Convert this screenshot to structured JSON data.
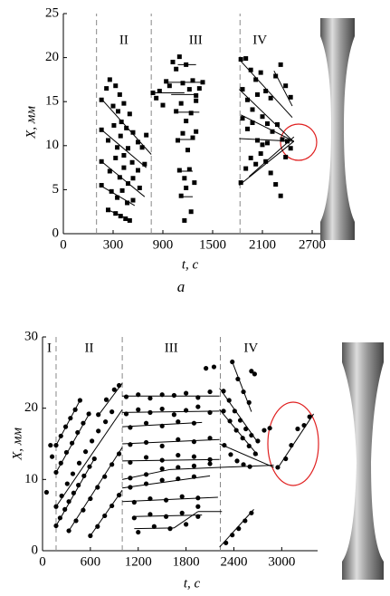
{
  "chart_data": [
    {
      "type": "scatter",
      "xlabel": "t, с",
      "ylabel": "X, мм",
      "caption": "a",
      "xlim": [
        0,
        2800
      ],
      "ylim": [
        0,
        25
      ],
      "xticks": [
        0,
        300,
        900,
        1500,
        2100,
        2700
      ],
      "yticks": [
        0,
        5,
        10,
        15,
        20,
        25
      ],
      "phases": [
        "II",
        "III",
        "IV"
      ],
      "phase_boundaries": [
        200,
        760,
        1830
      ],
      "color": "#000000",
      "annotation_color": "#e02020",
      "points": {
        "x": [
          230,
          260,
          280,
          300,
          330,
          360,
          380,
          400,
          430,
          460,
          500,
          540,
          600,
          650,
          700,
          230,
          270,
          310,
          350,
          390,
          430,
          480,
          530,
          600,
          680,
          230,
          280,
          330,
          380,
          430,
          480,
          540,
          620,
          230,
          290,
          350,
          410,
          470,
          540,
          270,
          330,
          390,
          450,
          500,
          780,
          820,
          860,
          900,
          940,
          980,
          1020,
          1060,
          1100,
          1140,
          1180,
          1220,
          1260,
          1300,
          1340,
          1380,
          1060,
          1120,
          1180,
          1240,
          1300,
          1080,
          1140,
          1200,
          1260,
          1100,
          1160,
          1220,
          1280,
          1120,
          1180,
          1240,
          1160,
          1300,
          1840,
          1900,
          1960,
          2020,
          2080,
          2140,
          2200,
          2260,
          2320,
          2380,
          2440,
          1860,
          1920,
          1980,
          2040,
          2100,
          2160,
          2220,
          2280,
          2340,
          1860,
          1920,
          1980,
          2040,
          2100,
          2160,
          2400,
          1840,
          1900,
          1960,
          2020,
          2080,
          2140,
          2200,
          2260,
          2320,
          2380,
          2440
        ],
        "y": [
          15.2,
          16.5,
          17.5,
          14.5,
          16.8,
          13.9,
          15.8,
          12.7,
          14.8,
          12,
          13.6,
          11.5,
          10.4,
          9.8,
          11.2,
          11.8,
          10.6,
          12.3,
          9.8,
          11.1,
          8.9,
          9.7,
          8.1,
          7.2,
          7.9,
          8.2,
          7.1,
          8.6,
          6.4,
          7.5,
          5.7,
          6.3,
          5.2,
          5.5,
          4.8,
          4.1,
          4.9,
          3.5,
          3.8,
          2.7,
          2.3,
          2.0,
          1.7,
          1.5,
          16,
          15.4,
          16.2,
          14.6,
          17.3,
          16.8,
          19.5,
          18.7,
          20.1,
          17.1,
          19.2,
          16.4,
          17.4,
          15.7,
          16.5,
          17.2,
          13.9,
          14.8,
          12.8,
          13.7,
          15.1,
          10.6,
          11.4,
          9.5,
          10.9,
          7.2,
          6.3,
          7.3,
          5.8,
          4.3,
          5.2,
          2.5,
          1.5,
          11.6,
          19.8,
          19.9,
          18.6,
          17.5,
          18.3,
          16.2,
          15.4,
          17.9,
          19.2,
          16.8,
          15.5,
          16.4,
          15.2,
          14.1,
          15.8,
          13.3,
          12.5,
          11.6,
          12.4,
          10.7,
          13.1,
          11.9,
          12.6,
          10.6,
          10.1,
          10.3,
          10.5,
          5.8,
          7.4,
          8.6,
          7.9,
          9.1,
          8.2,
          6.9,
          5.6,
          4.3,
          8.7,
          9.7
        ]
      },
      "lines": [
        [
          230,
          15.3,
          760,
          9
        ],
        [
          230,
          11.8,
          700,
          7.5
        ],
        [
          230,
          8.2,
          680,
          4.2
        ],
        [
          230,
          5.4,
          560,
          3.2
        ],
        [
          270,
          2.7,
          500,
          1.6
        ],
        [
          760,
          16,
          1160,
          16
        ],
        [
          960,
          17.2,
          1380,
          17.2
        ],
        [
          1080,
          19.2,
          1300,
          19.2
        ],
        [
          1000,
          15.8,
          1320,
          15.8
        ],
        [
          1040,
          13.8,
          1340,
          13.8
        ],
        [
          1080,
          10.7,
          1260,
          10.7
        ],
        [
          1100,
          7.1,
          1260,
          7.1
        ],
        [
          1100,
          4.2,
          1260,
          4.2
        ],
        [
          1820,
          19.8,
          2460,
          13.2
        ],
        [
          1820,
          16.4,
          2470,
          10.5
        ],
        [
          1840,
          13.5,
          2480,
          10.5
        ],
        [
          1820,
          10.8,
          2480,
          10.5
        ],
        [
          1820,
          5.5,
          2480,
          10.5
        ],
        [
          1940,
          6.5,
          2480,
          11
        ],
        [
          2240,
          18.5,
          2460,
          14.5
        ]
      ]
    },
    {
      "type": "scatter",
      "xlabel": "t, с",
      "ylabel": "X, мм",
      "xlim": [
        0,
        3450
      ],
      "ylim": [
        0,
        30
      ],
      "xticks": [
        0,
        600,
        1200,
        1800,
        2400,
        3000
      ],
      "yticks": [
        0,
        10,
        20,
        30
      ],
      "phases": [
        "I",
        "II",
        "III",
        "IV"
      ],
      "phase_boundaries": [
        170,
        1000,
        2230
      ],
      "color": "#000000",
      "annotation_color": "#e02020",
      "points": {
        "x": [
          50,
          100,
          120,
          170,
          220,
          280,
          330,
          390,
          450,
          520,
          590,
          650,
          170,
          240,
          310,
          380,
          460,
          540,
          620,
          700,
          790,
          870,
          170,
          230,
          300,
          370,
          440,
          510,
          580,
          170,
          230,
          290,
          350,
          410,
          470,
          330,
          420,
          510,
          600,
          690,
          780,
          870,
          960,
          600,
          690,
          780,
          870,
          960,
          700,
          800,
          900,
          960,
          1050,
          1200,
          1350,
          1500,
          1650,
          1800,
          1950,
          2100,
          1050,
          1200,
          1350,
          1500,
          1650,
          1800,
          1950,
          2100,
          1100,
          1300,
          1500,
          1700,
          1900,
          1100,
          1300,
          1500,
          1700,
          1900,
          2100,
          1100,
          1300,
          1500,
          1700,
          1900,
          2100,
          1100,
          1300,
          1500,
          1700,
          1900,
          2100,
          1100,
          1300,
          1500,
          1700,
          1900,
          1150,
          1350,
          1550,
          1750,
          1950,
          1150,
          1350,
          1550,
          1750,
          1950,
          1200,
          1400,
          1600,
          1800,
          1950,
          2050,
          2150,
          2270,
          2340,
          2410,
          2480,
          2550,
          2620,
          2700,
          2270,
          2350,
          2430,
          2510,
          2590,
          2670,
          2380,
          2450,
          2520,
          2590,
          2660,
          2620,
          2280,
          2360,
          2440,
          2520,
          2600,
          2300,
          2380,
          2460,
          2540,
          2620,
          2780,
          2850,
          2950,
          3050,
          3120,
          3200,
          3280,
          3350
        ],
        "y": [
          8.2,
          14.8,
          13.2,
          3.5,
          4.6,
          5.8,
          6.9,
          8.1,
          9.2,
          10.5,
          11.8,
          12.9,
          6.2,
          7.7,
          9.4,
          10.8,
          12.3,
          13.9,
          15.4,
          16.8,
          18.1,
          19.5,
          11,
          12.3,
          13.8,
          15.1,
          16.6,
          17.9,
          19.2,
          14.8,
          16.1,
          17.4,
          18.6,
          19.8,
          21.1,
          2.8,
          4.2,
          5.7,
          7.3,
          8.9,
          10.4,
          12.1,
          13.6,
          2.1,
          3.4,
          4.9,
          6.3,
          7.8,
          19.1,
          21.2,
          22.6,
          23.2,
          21.6,
          21.9,
          21.4,
          21.9,
          21.8,
          22.1,
          21.5,
          22.3,
          19.2,
          19.8,
          19.4,
          19.9,
          19.1,
          19.7,
          20.2,
          19.4,
          17.3,
          17.9,
          17.5,
          18.1,
          17.9,
          14.9,
          15.2,
          14.7,
          15.6,
          15.3,
          15.8,
          12.4,
          13.1,
          12.7,
          13.4,
          13.2,
          12.8,
          10.2,
          10.7,
          11.5,
          11.7,
          11.9,
          12.2,
          8.9,
          9.4,
          9.9,
          10.1,
          10.4,
          6.8,
          7.3,
          7.1,
          7.6,
          7.4,
          4.6,
          5.1,
          4.8,
          5.3,
          6.2,
          2.6,
          3.4,
          3.1,
          3.7,
          4.8,
          25.6,
          25.8,
          22.4,
          21.1,
          19.6,
          18.3,
          17.1,
          16.2,
          15.4,
          19.6,
          18.2,
          16.9,
          15.8,
          14.7,
          13.6,
          26.5,
          24.1,
          22.3,
          20.8,
          24.8,
          25.2,
          14.8,
          13.5,
          12.6,
          12.1,
          11.8,
          1.1,
          2.2,
          3.1,
          4.2,
          5.3,
          16.9,
          17.2,
          11.7,
          12.9,
          14.8,
          17.1,
          17.6,
          18.8
        ]
      },
      "lines": [
        [
          170,
          3.5,
          650,
          12.9
        ],
        [
          170,
          6.2,
          1000,
          19.8
        ],
        [
          170,
          11,
          600,
          19.5
        ],
        [
          170,
          14.8,
          470,
          21.1
        ],
        [
          330,
          2.8,
          1000,
          14.5
        ],
        [
          600,
          2.1,
          1000,
          8.5
        ],
        [
          700,
          19,
          1000,
          23.5
        ],
        [
          1000,
          21.7,
          2220,
          21.7
        ],
        [
          1000,
          19.4,
          2220,
          19.6
        ],
        [
          1000,
          17.4,
          2000,
          18
        ],
        [
          1000,
          15,
          2220,
          15.6
        ],
        [
          1000,
          12.6,
          2220,
          12.8
        ],
        [
          1000,
          10,
          1600,
          11.4
        ],
        [
          1600,
          11.4,
          2900,
          12
        ],
        [
          1000,
          8.8,
          2100,
          10.5
        ],
        [
          1000,
          6.9,
          2200,
          7.5
        ],
        [
          1150,
          4.8,
          2000,
          5
        ],
        [
          1150,
          3.1,
          1650,
          3.2
        ],
        [
          1650,
          3.2,
          1950,
          5.5
        ],
        [
          1950,
          5.5,
          2250,
          5.5
        ],
        [
          2220,
          22.8,
          2700,
          15.2
        ],
        [
          2220,
          19.8,
          2700,
          13.4
        ],
        [
          2380,
          26.5,
          2620,
          19.5
        ],
        [
          2220,
          15,
          2900,
          11.7
        ],
        [
          2220,
          0.5,
          2650,
          5.8
        ],
        [
          2950,
          11.6,
          3400,
          19.2
        ]
      ]
    }
  ]
}
